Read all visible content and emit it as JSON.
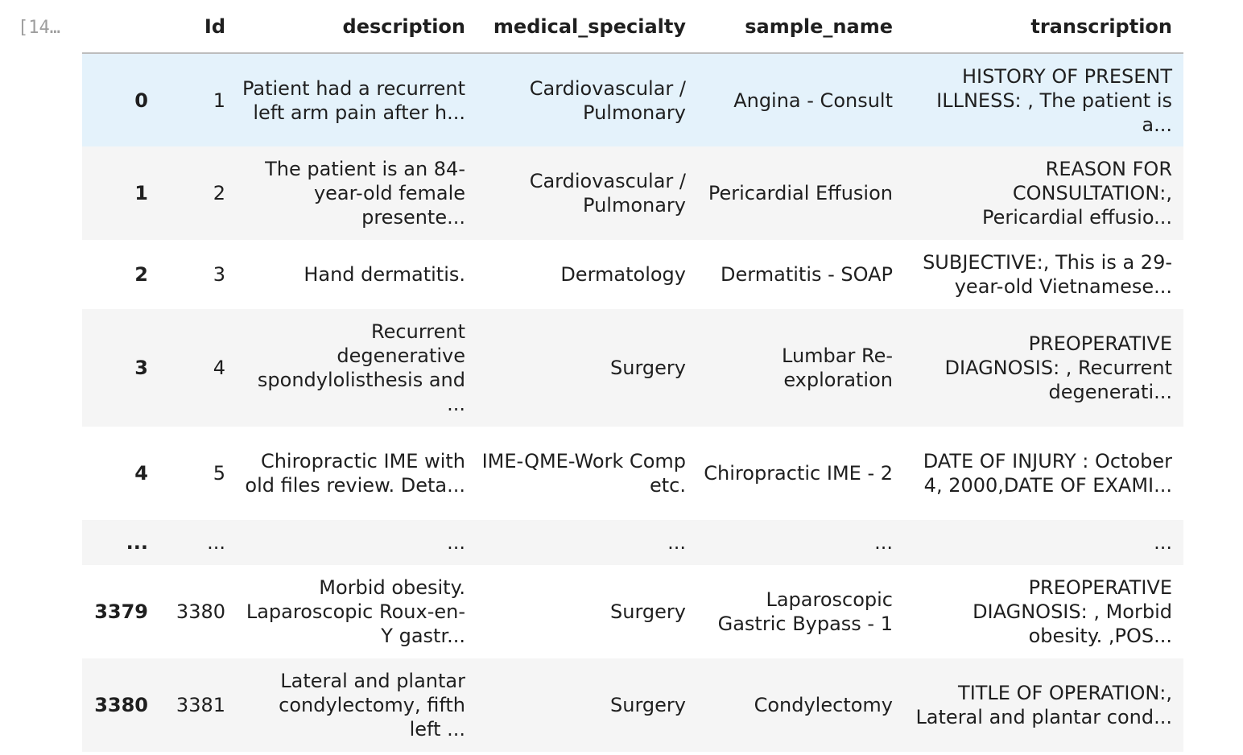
{
  "cell": {
    "prompt": "[14…"
  },
  "table": {
    "columns": [
      "",
      "Id",
      "description",
      "medical_specialty",
      "sample_name",
      "transcription"
    ],
    "rows": [
      {
        "index": "0",
        "id": "1",
        "description": "Patient had a recurrent left arm pain after h...",
        "medical_specialty": "Cardiovascular / Pulmonary",
        "sample_name": "Angina - Consult",
        "transcription": "HISTORY OF PRESENT ILLNESS: , The patient is a...",
        "state": "hover"
      },
      {
        "index": "1",
        "id": "2",
        "description": "The patient is an 84-year-old female presente...",
        "medical_specialty": "Cardiovascular / Pulmonary",
        "sample_name": "Pericardial Effusion",
        "transcription": "REASON FOR CONSULTATION:, Pericardial effusio...",
        "state": "odd"
      },
      {
        "index": "2",
        "id": "3",
        "description": "Hand dermatitis.",
        "medical_specialty": "Dermatology",
        "sample_name": "Dermatitis - SOAP",
        "transcription": "SUBJECTIVE:, This is a 29-year-old Vietnamese...",
        "state": "even"
      },
      {
        "index": "3",
        "id": "4",
        "description": "Recurrent degenerative spondylolisthesis and ...",
        "medical_specialty": "Surgery",
        "sample_name": "Lumbar Re-exploration",
        "transcription": "PREOPERATIVE DIAGNOSIS: , Recurrent degenerati...",
        "state": "odd"
      },
      {
        "index": "4",
        "id": "5",
        "description": "Chiropractic IME with old files review. Deta...",
        "medical_specialty": "IME-QME-Work Comp etc.",
        "sample_name": "Chiropractic IME - 2",
        "transcription": "DATE OF INJURY : October 4, 2000,DATE OF EXAMI...",
        "state": "even"
      },
      {
        "index": "...",
        "id": "...",
        "description": "...",
        "medical_specialty": "...",
        "sample_name": "...",
        "transcription": "...",
        "state": "odd"
      },
      {
        "index": "3379",
        "id": "3380",
        "description": "Morbid obesity. Laparoscopic Roux-en-Y gastr...",
        "medical_specialty": "Surgery",
        "sample_name": "Laparoscopic Gastric Bypass - 1",
        "transcription": "PREOPERATIVE DIAGNOSIS: , Morbid obesity. ,POS...",
        "state": "even"
      },
      {
        "index": "3380",
        "id": "3381",
        "description": "Lateral and plantar condylectomy, fifth left ...",
        "medical_specialty": "Surgery",
        "sample_name": "Condylectomy",
        "transcription": "TITLE OF OPERATION:, Lateral and plantar cond...",
        "state": "odd"
      }
    ]
  },
  "colors": {
    "row_odd": "#f5f5f5",
    "row_even": "#ffffff",
    "row_hover": "#e4f2fb",
    "header_border": "#bdbdbd",
    "prompt": "#9e9e9e"
  }
}
